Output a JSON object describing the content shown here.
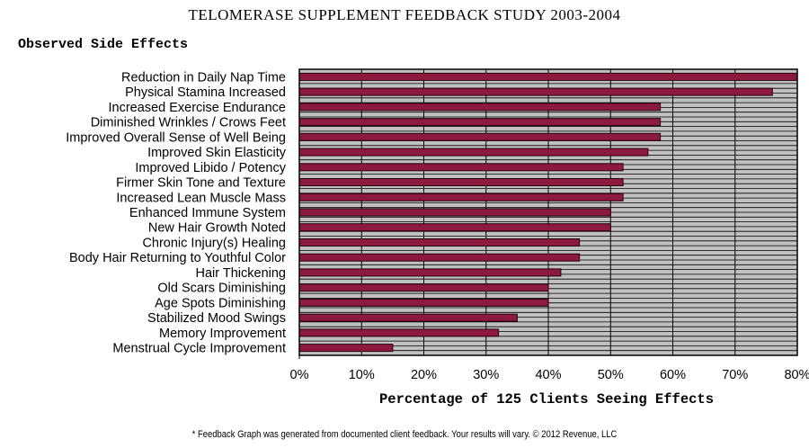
{
  "header": {
    "title": "TELOMERASE SUPPLEMENT FEEDBACK STUDY 2003-2004"
  },
  "footnote": "* Feedback Graph was generated from documented client feedback. Your results will vary.  © 2012 Revenue, LLC",
  "colors": {
    "bar": "#8b1a3e",
    "plot_background": "#c0c0c0",
    "grid": "#000000"
  },
  "chart_data": {
    "type": "bar",
    "orientation": "horizontal",
    "title": "Observed Side Effects",
    "xlabel": "Percentage of 125 Clients Seeing Effects",
    "ylabel": "",
    "xlim": [
      0,
      80
    ],
    "x_ticks": [
      "0%",
      "10%",
      "20%",
      "30%",
      "40%",
      "50%",
      "60%",
      "70%",
      "80%"
    ],
    "grid": true,
    "categories": [
      "Reduction in Daily Nap Time",
      "Physical Stamina Increased",
      "Increased Exercise Endurance",
      "Diminished Wrinkles / Crows Feet",
      "Improved Overall Sense of Well Being",
      "Improved Skin Elasticity",
      "Improved Libido / Potency",
      "Firmer Skin Tone and Texture",
      "Increased Lean Muscle Mass",
      "Enhanced Immune System",
      "New Hair Growth Noted",
      "Chronic Injury(s) Healing",
      "Body Hair Returning to Youthful Color",
      "Hair Thickening",
      "Old Scars Diminishing",
      "Age Spots Diminishing",
      "Stabilized Mood Swings",
      "Memory Improvement",
      "Menstrual Cycle Improvement"
    ],
    "values": [
      80,
      76,
      58,
      58,
      58,
      56,
      52,
      52,
      52,
      50,
      50,
      45,
      45,
      42,
      40,
      40,
      35,
      32,
      15
    ]
  }
}
